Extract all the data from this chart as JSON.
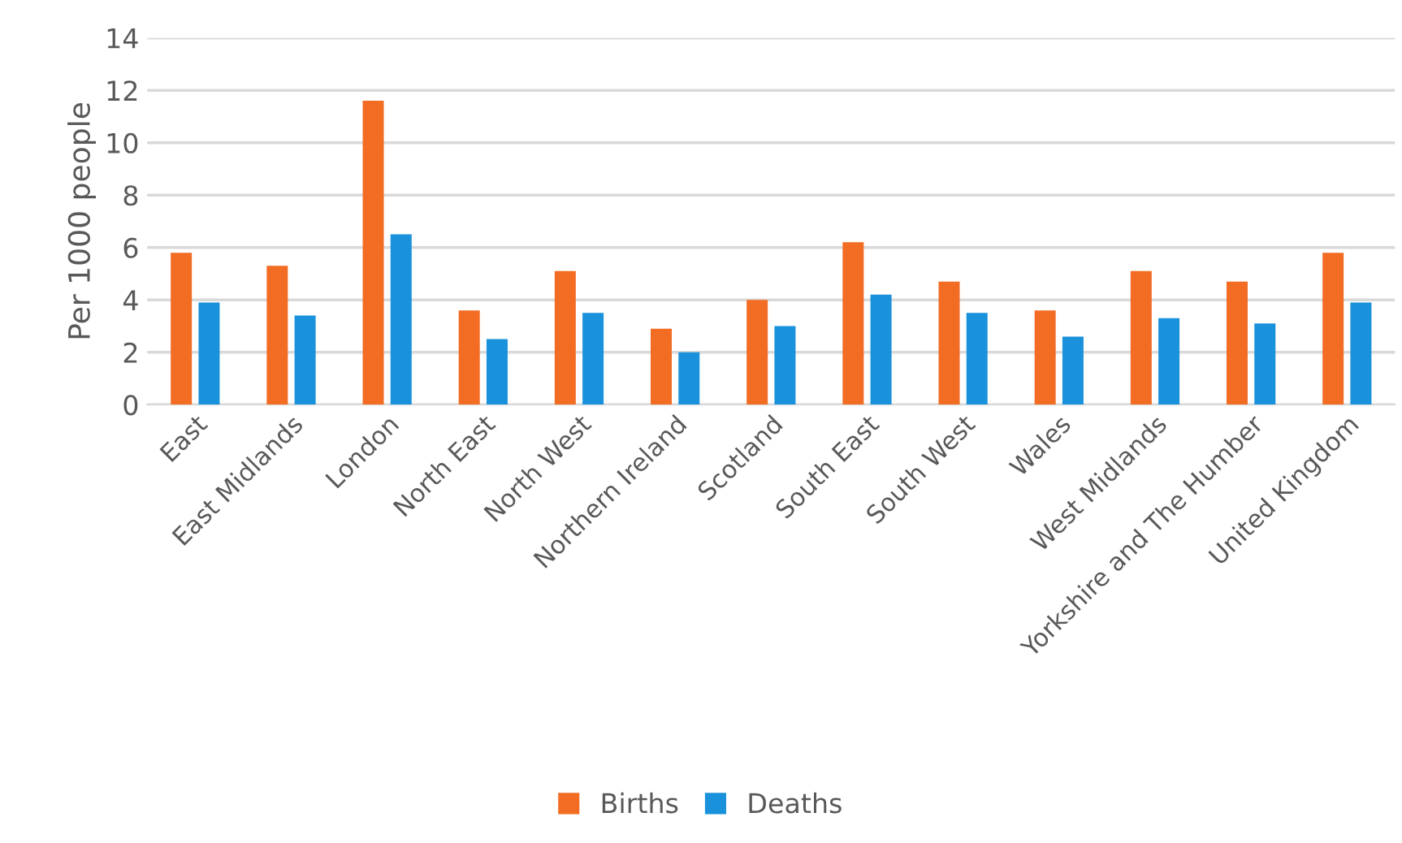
{
  "chart_data": {
    "type": "bar",
    "ylabel": "Per 1000 people",
    "categories": [
      "East",
      "East Midlands",
      "London",
      "North East",
      "North West",
      "Northern Ireland",
      "Scotland",
      "South East",
      "South West",
      "Wales",
      "West Midlands",
      "Yorkshire and The Humber",
      "United Kingdom"
    ],
    "series": [
      {
        "name": "Births",
        "color": "#f26c23",
        "values": [
          5.8,
          5.3,
          11.6,
          3.6,
          5.1,
          2.9,
          4.0,
          6.2,
          4.7,
          3.6,
          5.1,
          4.7,
          5.8
        ]
      },
      {
        "name": "Deaths",
        "color": "#1a91db",
        "values": [
          3.9,
          3.4,
          6.5,
          2.5,
          3.5,
          2.0,
          3.0,
          4.2,
          3.5,
          2.6,
          3.3,
          3.1,
          3.9
        ]
      }
    ],
    "ylim": [
      0,
      14
    ],
    "yticks": [
      0,
      2,
      4,
      6,
      8,
      10,
      12,
      14
    ],
    "grid": "y",
    "legend": "bottom"
  }
}
